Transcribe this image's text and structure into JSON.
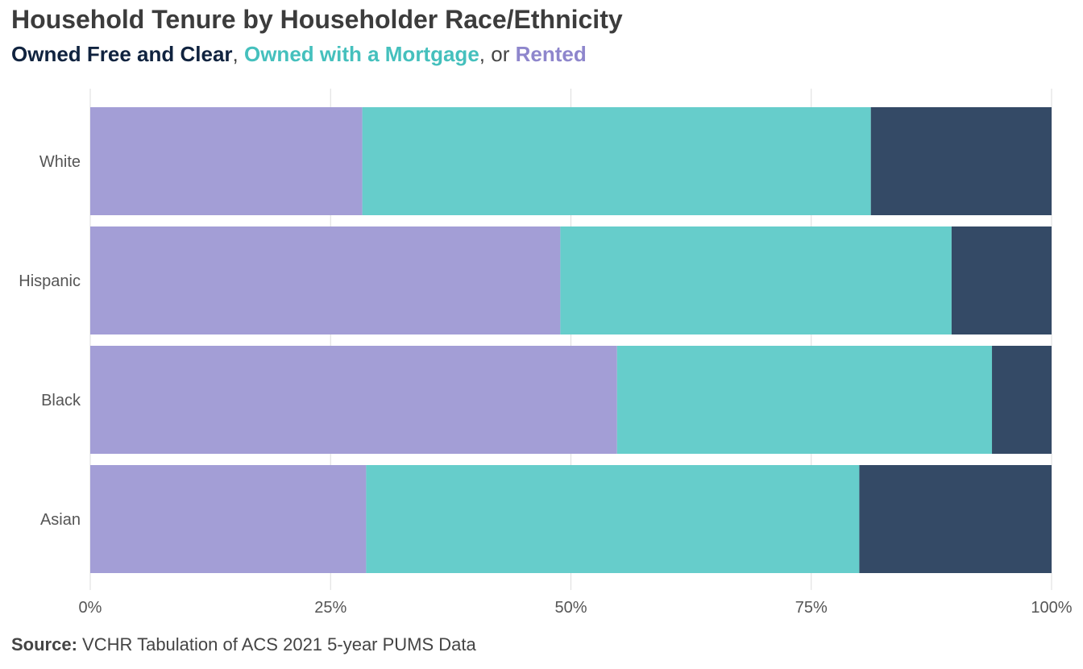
{
  "chart_data": {
    "type": "bar",
    "orientation": "horizontal",
    "stacked": true,
    "title": "Household Tenure by Householder Race/Ethnicity",
    "subtitle": {
      "parts": [
        {
          "text": "Owned Free and Clear",
          "series": 2
        },
        {
          "text": ", "
        },
        {
          "text": "Owned with a Mortgage",
          "series": 1
        },
        {
          "text": ", or "
        },
        {
          "text": "Rented",
          "series": 0
        }
      ]
    },
    "categories": [
      "White",
      "Hispanic",
      "Black",
      "Asian"
    ],
    "series": [
      {
        "name": "Rented",
        "color": "#a39ed6",
        "values": [
          28.3,
          48.9,
          54.8,
          28.7
        ]
      },
      {
        "name": "Owned with a Mortgage",
        "color": "#66cdcb",
        "values": [
          52.9,
          40.7,
          39.0,
          51.3
        ]
      },
      {
        "name": "Owned Free and Clear",
        "color": "#344a66",
        "values": [
          18.8,
          10.4,
          6.2,
          20.0
        ]
      }
    ],
    "subtitle_colors": [
      "#8e86cc",
      "#45c0bd",
      "#10233f"
    ],
    "xlim": [
      0,
      100
    ],
    "xticks": [
      0,
      25,
      50,
      75,
      100
    ],
    "xtick_labels": [
      "0%",
      "25%",
      "50%",
      "75%",
      "100%"
    ],
    "grid": "vertical",
    "gridline_color": "#dddddd",
    "legend": "none"
  },
  "source": {
    "label": "Source:",
    "text": " VCHR Tabulation of ACS 2021 5-year PUMS Data"
  }
}
